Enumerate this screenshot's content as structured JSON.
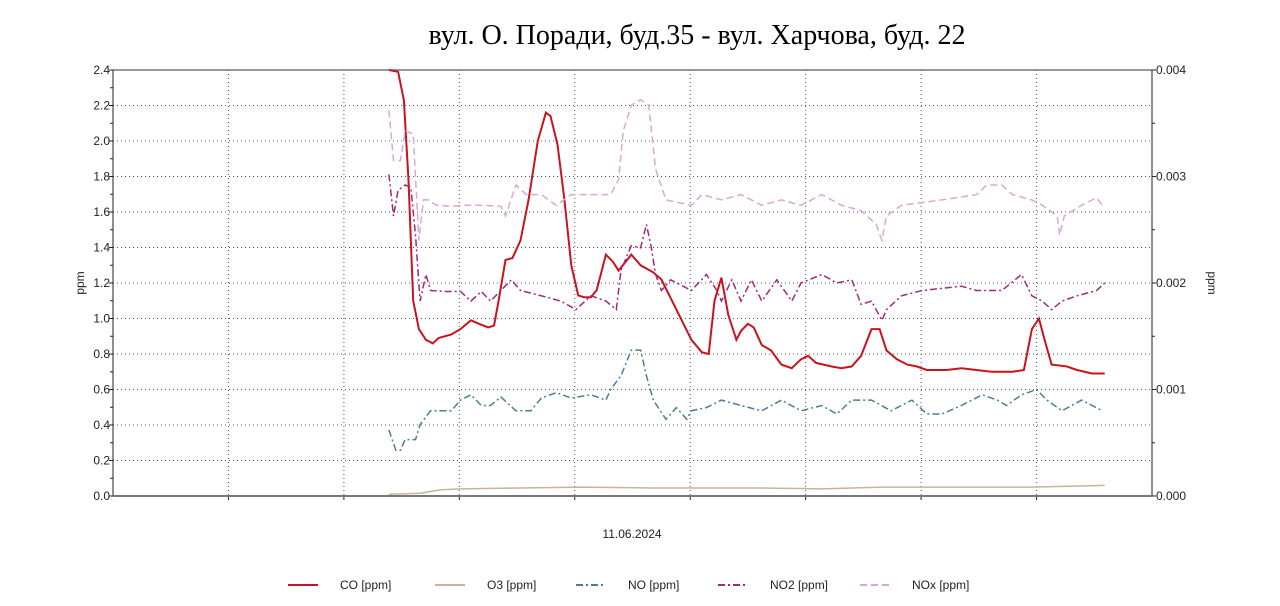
{
  "chart_data": {
    "type": "line",
    "title": "вул. О. Поради, буд.35 - вул. Харчова, буд. 22",
    "xlabel": "11.06.2024",
    "ylabel": "ppm",
    "y2label": "ppm",
    "xlim": [
      0,
      90
    ],
    "ylim": [
      0,
      2.4
    ],
    "y2lim": [
      0,
      0.004
    ],
    "yticks": [
      "0.0",
      "0.2",
      "0.4",
      "0.6",
      "0.8",
      "1.0",
      "1.2",
      "1.4",
      "1.6",
      "1.8",
      "2.0",
      "2.2",
      "2.4"
    ],
    "y2ticks": [
      "0.000",
      "0.001",
      "0.002",
      "0.003",
      "0.004"
    ],
    "xgrid": [
      10,
      20,
      30,
      40,
      50,
      60,
      70,
      80
    ],
    "grid": true,
    "legend_position": "bottom",
    "series": [
      {
        "name": "CO [ppm]",
        "color": "#c8141e",
        "style": "solid",
        "axis": "left",
        "points": [
          [
            23.9,
            2.4
          ],
          [
            24.7,
            2.39
          ],
          [
            25.2,
            2.23
          ],
          [
            25.6,
            1.78
          ],
          [
            26.0,
            1.1
          ],
          [
            26.5,
            0.94
          ],
          [
            27.1,
            0.88
          ],
          [
            27.7,
            0.86
          ],
          [
            28.2,
            0.89
          ],
          [
            29.3,
            0.91
          ],
          [
            30.1,
            0.94
          ],
          [
            31.0,
            0.99
          ],
          [
            31.7,
            0.97
          ],
          [
            32.5,
            0.95
          ],
          [
            33.0,
            0.96
          ],
          [
            33.4,
            1.1
          ],
          [
            34.0,
            1.33
          ],
          [
            34.6,
            1.34
          ],
          [
            35.3,
            1.44
          ],
          [
            36.0,
            1.67
          ],
          [
            36.8,
            2.0
          ],
          [
            37.5,
            2.16
          ],
          [
            37.9,
            2.14
          ],
          [
            38.5,
            1.98
          ],
          [
            39.1,
            1.67
          ],
          [
            39.7,
            1.3
          ],
          [
            40.3,
            1.13
          ],
          [
            40.8,
            1.12
          ],
          [
            41.4,
            1.12
          ],
          [
            41.9,
            1.16
          ],
          [
            42.7,
            1.36
          ],
          [
            43.3,
            1.32
          ],
          [
            43.8,
            1.27
          ],
          [
            44.9,
            1.36
          ],
          [
            45.7,
            1.3
          ],
          [
            46.8,
            1.26
          ],
          [
            47.5,
            1.22
          ],
          [
            48.8,
            1.05
          ],
          [
            50.1,
            0.88
          ],
          [
            51.0,
            0.81
          ],
          [
            51.6,
            0.8
          ],
          [
            52.1,
            1.1
          ],
          [
            52.7,
            1.23
          ],
          [
            53.3,
            1.02
          ],
          [
            54.0,
            0.88
          ],
          [
            54.4,
            0.93
          ],
          [
            55.0,
            0.97
          ],
          [
            55.5,
            0.95
          ],
          [
            56.2,
            0.85
          ],
          [
            57.0,
            0.82
          ],
          [
            57.9,
            0.74
          ],
          [
            58.8,
            0.72
          ],
          [
            59.6,
            0.77
          ],
          [
            60.2,
            0.79
          ],
          [
            60.9,
            0.75
          ],
          [
            62.2,
            0.73
          ],
          [
            63.1,
            0.72
          ],
          [
            64.0,
            0.73
          ],
          [
            64.8,
            0.79
          ],
          [
            65.7,
            0.94
          ],
          [
            66.4,
            0.94
          ],
          [
            67.0,
            0.82
          ],
          [
            67.9,
            0.77
          ],
          [
            68.8,
            0.74
          ],
          [
            69.6,
            0.73
          ],
          [
            70.5,
            0.71
          ],
          [
            72.2,
            0.71
          ],
          [
            73.5,
            0.72
          ],
          [
            74.8,
            0.71
          ],
          [
            76.1,
            0.7
          ],
          [
            77.9,
            0.7
          ],
          [
            78.9,
            0.71
          ],
          [
            79.6,
            0.94
          ],
          [
            80.2,
            1.0
          ],
          [
            80.7,
            0.88
          ],
          [
            81.3,
            0.74
          ],
          [
            82.6,
            0.73
          ],
          [
            83.5,
            0.71
          ],
          [
            84.8,
            0.69
          ],
          [
            85.9,
            0.69
          ]
        ]
      },
      {
        "name": "O3 [ppm]",
        "color": "#c8b496",
        "style": "solid",
        "axis": "left",
        "points": [
          [
            23.9,
            0.01
          ],
          [
            26.6,
            0.015
          ],
          [
            28.4,
            0.035
          ],
          [
            30.1,
            0.04
          ],
          [
            35.3,
            0.045
          ],
          [
            40.5,
            0.05
          ],
          [
            46.6,
            0.045
          ],
          [
            56.2,
            0.045
          ],
          [
            61.4,
            0.04
          ],
          [
            66.6,
            0.05
          ],
          [
            72.7,
            0.05
          ],
          [
            79.6,
            0.05
          ],
          [
            85.9,
            0.06
          ]
        ]
      },
      {
        "name": "NO [ppm]",
        "color": "#4a7e96",
        "style": "dashdot",
        "axis": "right",
        "points": [
          [
            23.9,
            0.00062
          ],
          [
            24.5,
            0.00043
          ],
          [
            24.9,
            0.00043
          ],
          [
            25.3,
            0.00053
          ],
          [
            26.2,
            0.00053
          ],
          [
            26.6,
            0.00067
          ],
          [
            27.5,
            0.0008
          ],
          [
            29.3,
            0.0008
          ],
          [
            30.1,
            0.0009
          ],
          [
            31.0,
            0.00095
          ],
          [
            31.9,
            0.00085
          ],
          [
            32.7,
            0.00085
          ],
          [
            33.6,
            0.00093
          ],
          [
            34.9,
            0.0008
          ],
          [
            36.2,
            0.0008
          ],
          [
            37.1,
            0.00092
          ],
          [
            38.4,
            0.00097
          ],
          [
            39.7,
            0.00092
          ],
          [
            41.4,
            0.00095
          ],
          [
            42.7,
            0.0009
          ],
          [
            43.1,
            0.001
          ],
          [
            44.0,
            0.00113
          ],
          [
            44.9,
            0.00137
          ],
          [
            45.7,
            0.00137
          ],
          [
            46.2,
            0.00113
          ],
          [
            46.8,
            0.0009
          ],
          [
            47.9,
            0.00072
          ],
          [
            48.8,
            0.00083
          ],
          [
            49.7,
            0.00072
          ],
          [
            50.1,
            0.0008
          ],
          [
            51.4,
            0.00083
          ],
          [
            52.7,
            0.0009
          ],
          [
            54.4,
            0.00085
          ],
          [
            56.2,
            0.0008
          ],
          [
            57.9,
            0.0009
          ],
          [
            59.6,
            0.0008
          ],
          [
            61.4,
            0.00085
          ],
          [
            62.7,
            0.00077
          ],
          [
            64.0,
            0.0009
          ],
          [
            65.7,
            0.0009
          ],
          [
            67.4,
            0.0008
          ],
          [
            69.2,
            0.0009
          ],
          [
            70.5,
            0.00077
          ],
          [
            71.8,
            0.00077
          ],
          [
            73.5,
            0.00085
          ],
          [
            75.3,
            0.00095
          ],
          [
            76.6,
            0.0009
          ],
          [
            77.4,
            0.00085
          ],
          [
            78.7,
            0.00095
          ],
          [
            80.0,
            0.001
          ],
          [
            80.9,
            0.0009
          ],
          [
            82.2,
            0.0008
          ],
          [
            83.9,
            0.0009
          ],
          [
            85.7,
            0.0008
          ]
        ]
      },
      {
        "name": "NO2 [ppm]",
        "color": "#a0287e",
        "style": "dashdot",
        "axis": "right",
        "points": [
          [
            23.9,
            0.00302
          ],
          [
            24.3,
            0.00263
          ],
          [
            24.7,
            0.00287
          ],
          [
            25.3,
            0.00292
          ],
          [
            25.8,
            0.0029
          ],
          [
            26.2,
            0.00245
          ],
          [
            26.6,
            0.00183
          ],
          [
            27.1,
            0.00208
          ],
          [
            27.5,
            0.00193
          ],
          [
            28.8,
            0.00192
          ],
          [
            30.1,
            0.00192
          ],
          [
            31.0,
            0.00183
          ],
          [
            31.9,
            0.00192
          ],
          [
            32.7,
            0.00183
          ],
          [
            33.6,
            0.00193
          ],
          [
            34.5,
            0.00203
          ],
          [
            35.3,
            0.00193
          ],
          [
            37.1,
            0.00188
          ],
          [
            38.8,
            0.00183
          ],
          [
            40.1,
            0.00175
          ],
          [
            41.4,
            0.00188
          ],
          [
            42.7,
            0.00183
          ],
          [
            43.6,
            0.00175
          ],
          [
            44.0,
            0.00212
          ],
          [
            44.9,
            0.00235
          ],
          [
            45.7,
            0.00233
          ],
          [
            46.2,
            0.00255
          ],
          [
            46.6,
            0.00235
          ],
          [
            47.0,
            0.00208
          ],
          [
            47.5,
            0.00193
          ],
          [
            48.3,
            0.00203
          ],
          [
            50.1,
            0.00193
          ],
          [
            51.4,
            0.00208
          ],
          [
            52.3,
            0.00193
          ],
          [
            52.7,
            0.00183
          ],
          [
            53.6,
            0.00203
          ],
          [
            54.4,
            0.00183
          ],
          [
            55.3,
            0.00203
          ],
          [
            56.2,
            0.00183
          ],
          [
            57.5,
            0.00203
          ],
          [
            58.8,
            0.00183
          ],
          [
            59.6,
            0.002
          ],
          [
            61.4,
            0.00208
          ],
          [
            62.7,
            0.002
          ],
          [
            64.0,
            0.00203
          ],
          [
            64.8,
            0.0018
          ],
          [
            65.7,
            0.00183
          ],
          [
            66.6,
            0.00165
          ],
          [
            67.0,
            0.00175
          ],
          [
            68.3,
            0.00188
          ],
          [
            70.1,
            0.00193
          ],
          [
            73.5,
            0.00197
          ],
          [
            74.8,
            0.00193
          ],
          [
            77.0,
            0.00193
          ],
          [
            78.7,
            0.00208
          ],
          [
            79.6,
            0.00188
          ],
          [
            80.5,
            0.00183
          ],
          [
            81.3,
            0.00175
          ],
          [
            82.2,
            0.00183
          ],
          [
            83.5,
            0.00188
          ],
          [
            85.2,
            0.00193
          ],
          [
            85.9,
            0.002
          ]
        ]
      },
      {
        "name": "NOx [ppm]",
        "color": "#d8a8d8",
        "style": "dash",
        "axis": "right",
        "points": [
          [
            23.9,
            0.00362
          ],
          [
            24.3,
            0.00315
          ],
          [
            24.9,
            0.00315
          ],
          [
            25.3,
            0.00343
          ],
          [
            26.0,
            0.0034
          ],
          [
            26.5,
            0.0024
          ],
          [
            26.9,
            0.00278
          ],
          [
            27.3,
            0.00278
          ],
          [
            28.0,
            0.00273
          ],
          [
            29.3,
            0.00272
          ],
          [
            30.6,
            0.00273
          ],
          [
            31.9,
            0.00273
          ],
          [
            33.6,
            0.00272
          ],
          [
            34.0,
            0.00263
          ],
          [
            34.9,
            0.00292
          ],
          [
            35.8,
            0.00283
          ],
          [
            37.1,
            0.00283
          ],
          [
            38.4,
            0.00273
          ],
          [
            39.7,
            0.00283
          ],
          [
            42.3,
            0.00283
          ],
          [
            43.1,
            0.00283
          ],
          [
            43.8,
            0.00297
          ],
          [
            44.2,
            0.00343
          ],
          [
            44.9,
            0.00367
          ],
          [
            45.7,
            0.00372
          ],
          [
            46.4,
            0.00367
          ],
          [
            47.0,
            0.00307
          ],
          [
            47.9,
            0.00278
          ],
          [
            50.1,
            0.00273
          ],
          [
            51.0,
            0.00283
          ],
          [
            52.7,
            0.00278
          ],
          [
            54.4,
            0.00283
          ],
          [
            56.2,
            0.00273
          ],
          [
            57.9,
            0.00278
          ],
          [
            59.6,
            0.00273
          ],
          [
            61.4,
            0.00283
          ],
          [
            63.1,
            0.00273
          ],
          [
            64.8,
            0.00268
          ],
          [
            66.1,
            0.00255
          ],
          [
            66.6,
            0.0024
          ],
          [
            67.0,
            0.00263
          ],
          [
            68.3,
            0.00273
          ],
          [
            71.8,
            0.00278
          ],
          [
            74.8,
            0.00283
          ],
          [
            75.7,
            0.00292
          ],
          [
            77.0,
            0.00292
          ],
          [
            77.9,
            0.00283
          ],
          [
            79.6,
            0.00278
          ],
          [
            80.5,
            0.00273
          ],
          [
            81.8,
            0.00263
          ],
          [
            82.0,
            0.00245
          ],
          [
            82.4,
            0.00263
          ],
          [
            83.9,
            0.00273
          ],
          [
            85.2,
            0.0028
          ],
          [
            85.7,
            0.00273
          ]
        ]
      }
    ]
  }
}
